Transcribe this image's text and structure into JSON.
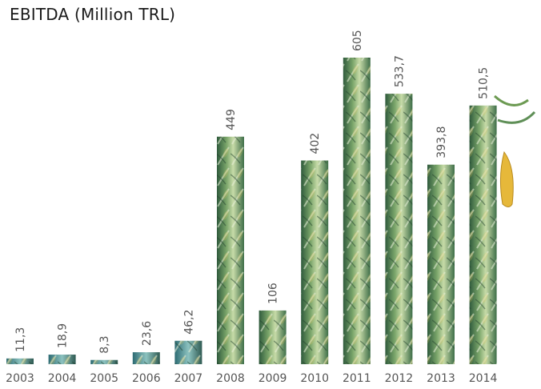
{
  "chart_data": {
    "type": "bar",
    "title": "EBITDA (Million TRL)",
    "categories": [
      "2003",
      "2004",
      "2005",
      "2006",
      "2007",
      "2008",
      "2009",
      "2010",
      "2011",
      "2012",
      "2013",
      "2014"
    ],
    "values": [
      11.3,
      18.9,
      8.3,
      23.6,
      46.2,
      449,
      106,
      402,
      605,
      533.7,
      393.8,
      510.5
    ],
    "value_labels": [
      "11,3",
      "18,9",
      "8,3",
      "23,6",
      "46,2",
      "449",
      "106",
      "402",
      "605",
      "533,7",
      "393,8",
      "510,5"
    ],
    "ylim": [
      0,
      605
    ],
    "grid": false,
    "data_label_orientation": "vertical",
    "colors": {
      "bar_dark": "#2f5a3c",
      "bar_mid": "#5f8f57",
      "bar_light": "#a9c98a",
      "bar_teal": "#3f8a8a",
      "corn_yellow": "#e6b83a",
      "text": "#555555"
    }
  }
}
